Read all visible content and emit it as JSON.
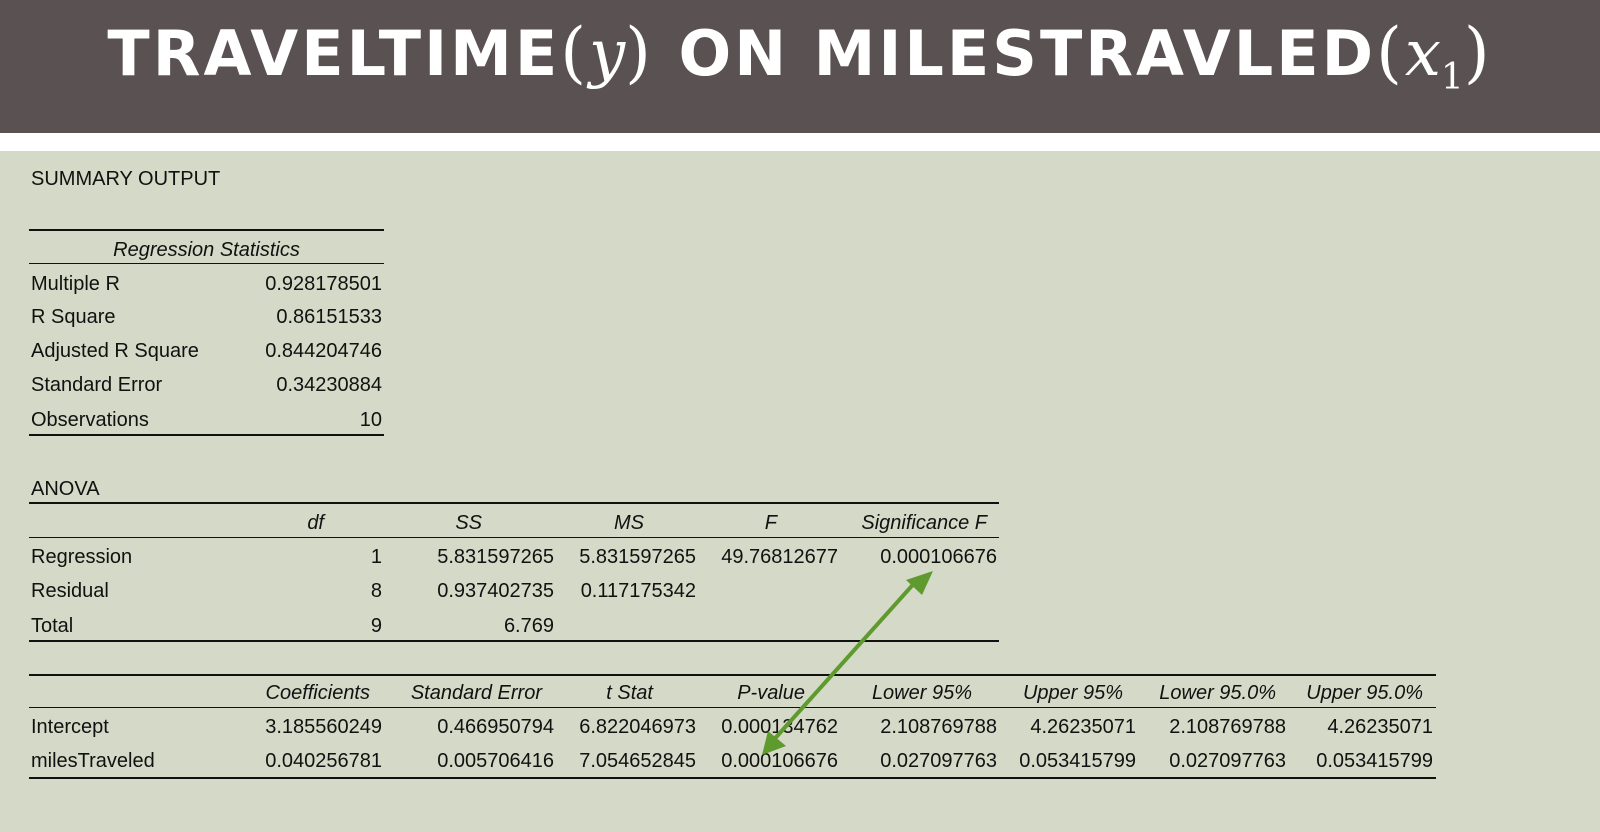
{
  "title": {
    "part1": "TRAVELTIME",
    "var1": "y",
    "part2": "ON MILESTRAVLED",
    "var2": "x",
    "sub2": "1"
  },
  "summary": {
    "label": "SUMMARY OUTPUT"
  },
  "regression_statistics": {
    "header": "Regression Statistics",
    "rows": [
      {
        "label": "Multiple R",
        "value": "0.928178501"
      },
      {
        "label": "R Square",
        "value": "0.86151533"
      },
      {
        "label": "Adjusted R Square",
        "value": "0.844204746"
      },
      {
        "label": "Standard Error",
        "value": "0.34230884"
      },
      {
        "label": "Observations",
        "value": "10"
      }
    ]
  },
  "anova": {
    "label": "ANOVA",
    "headers": {
      "df": "df",
      "ss": "SS",
      "ms": "MS",
      "f": "F",
      "sigf": "Significance F"
    },
    "rows": [
      {
        "label": "Regression",
        "df": "1",
        "ss": "5.831597265",
        "ms": "5.831597265",
        "f": "49.76812677",
        "sigf": "0.000106676"
      },
      {
        "label": "Residual",
        "df": "8",
        "ss": "0.937402735",
        "ms": "0.117175342",
        "f": "",
        "sigf": ""
      },
      {
        "label": "Total",
        "df": "9",
        "ss": "6.769",
        "ms": "",
        "f": "",
        "sigf": ""
      }
    ]
  },
  "coefficients": {
    "headers": {
      "coef": "Coefficients",
      "se": "Standard Error",
      "t": "t Stat",
      "p": "P-value",
      "lo95": "Lower 95%",
      "up95": "Upper 95%",
      "lo950": "Lower 95.0%",
      "up950": "Upper 95.0%"
    },
    "rows": [
      {
        "label": "Intercept",
        "coef": "3.185560249",
        "se": "0.466950794",
        "t": "6.822046973",
        "p": "0.000134762",
        "lo95": "2.108769788",
        "up95": "4.26235071",
        "lo950": "2.108769788",
        "up950": "4.26235071"
      },
      {
        "label": "milesTraveled",
        "coef": "0.040256781",
        "se": "0.005706416",
        "t": "7.054652845",
        "p": "0.000106676",
        "lo95": "0.027097763",
        "up95": "0.053415799",
        "lo950": "0.027097763",
        "up950": "0.053415799"
      }
    ]
  },
  "colors": {
    "title_bg": "#5a5152",
    "slide_bg": "#d5d9c7",
    "arrow": "#5e9a2e"
  }
}
